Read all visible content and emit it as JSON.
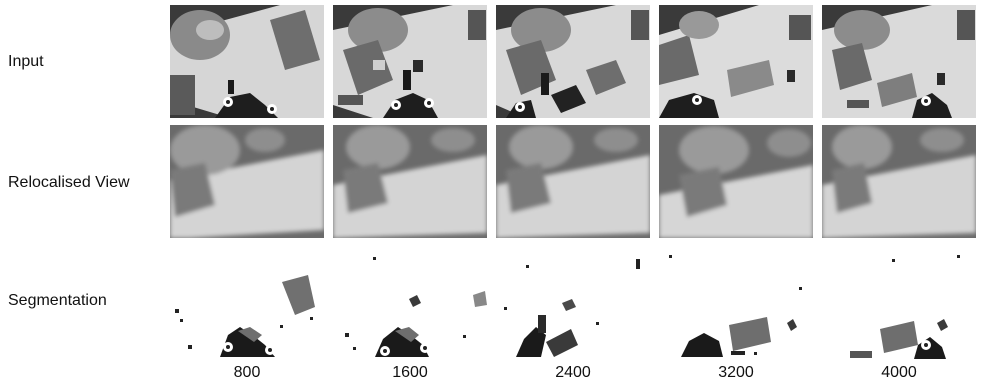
{
  "figure": {
    "row_labels": [
      "Input",
      "Relocalised View",
      "Segmentation"
    ],
    "column_labels": [
      "800",
      "1600",
      "2400",
      "3200",
      "4000"
    ]
  }
}
